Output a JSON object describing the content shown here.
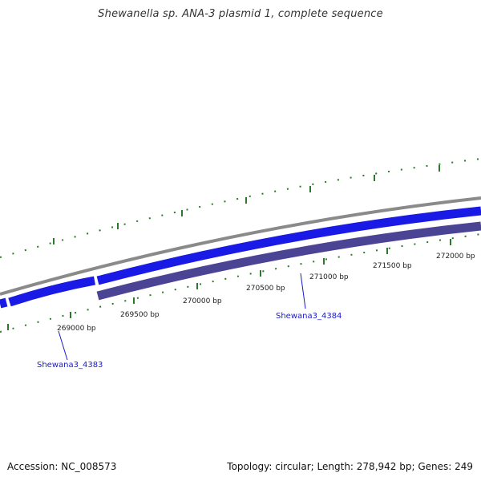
{
  "title": "Shewanella sp. ANA-3 plasmid 1, complete sequence",
  "footer": {
    "accession": "Accession: NC_008573",
    "summary": "Topology: circular; Length: 278,942 bp; Genes: 249"
  },
  "ruler": {
    "labels": [
      "269000 bp",
      "269500 bp",
      "270000 bp",
      "270500 bp",
      "271000 bp",
      "271500 bp",
      "272000 bp"
    ]
  },
  "genes": [
    {
      "name": "Shewana3_4383",
      "strand": "forward",
      "color": "#1a1ae6"
    },
    {
      "name": "Shewana3_4384",
      "strand": "reverse",
      "color": "#4b4494"
    }
  ],
  "colors": {
    "backbone": "#8a8a8a",
    "forward_gene": "#1a1ae6",
    "reverse_gene": "#4b4494",
    "tick": "#2a7a2a",
    "gene_label": "#1a1acc"
  }
}
